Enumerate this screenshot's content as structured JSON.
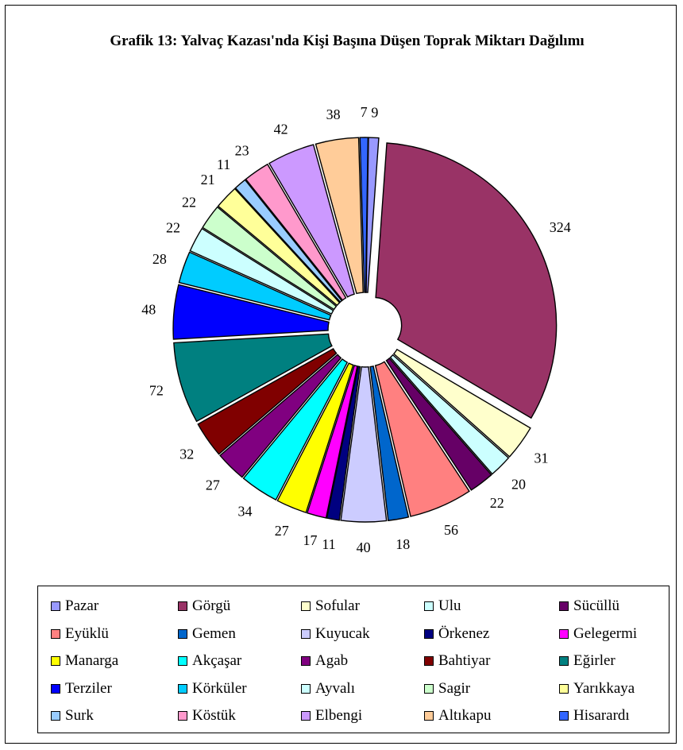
{
  "chart_data": {
    "type": "pie",
    "title": "Grafik 13: Yalvaç Kazası'nda Kişi Başına Düşen Toprak Miktarı Dağılımı",
    "categories": [
      "Pazar",
      "Görgü",
      "Sofular",
      "Ulu",
      "Sücüllü",
      "Eyüklü",
      "Gemen",
      "Kuyucak",
      "Örkenez",
      "Gelegermi",
      "Manarga",
      "Akçaşar",
      "Agab",
      "Bahtiyar",
      "Eğirler",
      "Terziler",
      "Körküler",
      "Ayvalı",
      "Sagir",
      "Yarıkkaya",
      "Surk",
      "Köstük",
      "Elbengi",
      "Altıkapu",
      "Hisarardı"
    ],
    "values": [
      9,
      324,
      31,
      20,
      22,
      56,
      18,
      40,
      11,
      17,
      27,
      34,
      27,
      32,
      72,
      48,
      28,
      22,
      22,
      21,
      11,
      23,
      42,
      38,
      7
    ],
    "colors": [
      "#9999ff",
      "#993366",
      "#ffffcc",
      "#ccffff",
      "#660066",
      "#ff8080",
      "#0066cc",
      "#ccccff",
      "#000080",
      "#ff00ff",
      "#ffff00",
      "#00ffff",
      "#800080",
      "#800000",
      "#008080",
      "#0000ff",
      "#00ccff",
      "#ccffff",
      "#ccffcc",
      "#ffff99",
      "#99ccff",
      "#ff99cc",
      "#cc99ff",
      "#ffcc99",
      "#3366ff"
    ],
    "legend_position": "bottom",
    "exploded": true
  }
}
